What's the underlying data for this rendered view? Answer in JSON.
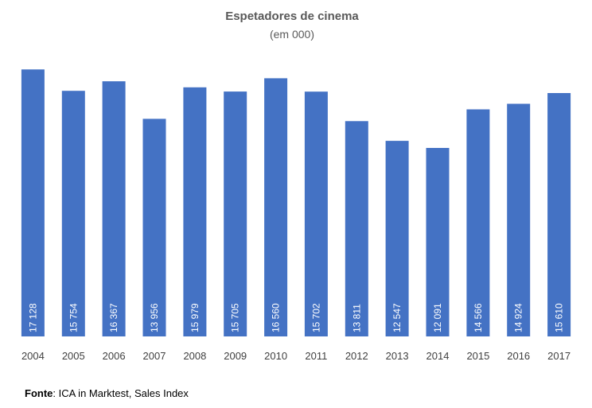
{
  "chart_data": {
    "type": "bar",
    "title": "Espetadores de cinema",
    "subtitle": "(em 000)",
    "categories": [
      "2004",
      "2005",
      "2006",
      "2007",
      "2008",
      "2009",
      "2010",
      "2011",
      "2012",
      "2013",
      "2014",
      "2015",
      "2016",
      "2017"
    ],
    "values": [
      17128,
      15754,
      16367,
      13956,
      15979,
      15705,
      16560,
      15702,
      13811,
      12547,
      12091,
      14566,
      14924,
      15610
    ],
    "value_labels": [
      "17 128",
      "15 754",
      "16 367",
      "13 956",
      "15 979",
      "15 705",
      "16 560",
      "15 702",
      "13 811",
      "12 547",
      "12 091",
      "14 566",
      "14 924",
      "15 610"
    ],
    "ylim": [
      0,
      17600
    ],
    "grid": false,
    "legend": "none",
    "bar_color": "#4472C4",
    "label_color": "#FFFFFF"
  },
  "source": {
    "label": "Fonte",
    "text": ": ICA in Marktest, Sales Index"
  }
}
